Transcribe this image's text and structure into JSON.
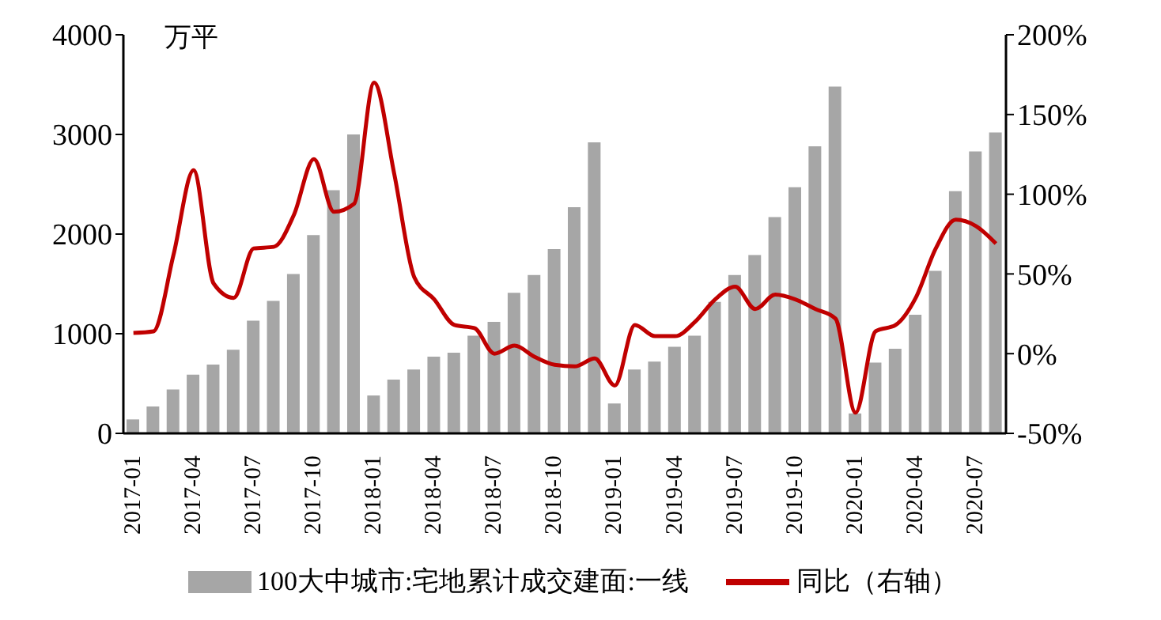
{
  "chart_data": {
    "type": "bar",
    "ylabel": "万平",
    "categories": [
      "2017-01",
      null,
      null,
      "2017-04",
      null,
      null,
      "2017-07",
      null,
      null,
      "2017-10",
      null,
      null,
      "2018-01",
      null,
      null,
      "2018-04",
      null,
      null,
      "2018-07",
      null,
      null,
      "2018-10",
      null,
      null,
      "2019-01",
      null,
      null,
      "2019-04",
      null,
      null,
      "2019-07",
      null,
      null,
      "2019-10",
      null,
      null,
      "2020-01",
      null,
      null,
      "2020-04",
      null,
      null,
      "2020-07",
      null
    ],
    "series": [
      {
        "name": "100大中城市:宅地累计成交建面:一线",
        "color": "#a6a6a6",
        "values": [
          140,
          270,
          440,
          590,
          690,
          840,
          1130,
          1330,
          1600,
          1990,
          2440,
          3000,
          380,
          540,
          640,
          770,
          810,
          980,
          1120,
          1410,
          1590,
          1850,
          2270,
          2920,
          300,
          640,
          720,
          870,
          980,
          1320,
          1590,
          1790,
          2170,
          2470,
          2880,
          3480,
          200,
          710,
          850,
          1190,
          1630,
          2430,
          2830,
          3020
        ]
      },
      {
        "name": "同比（右轴）",
        "type": "line",
        "axis": "y2",
        "color": "#c00000",
        "values": [
          13,
          14,
          62,
          115,
          44,
          35,
          66,
          67,
          87,
          122,
          89,
          94,
          170,
          113,
          48,
          34,
          18,
          16,
          0,
          5,
          -2,
          -7,
          -8,
          -3,
          -20,
          18,
          11,
          11,
          20,
          34,
          42,
          28,
          37,
          34,
          28,
          22,
          -37,
          14,
          18,
          35,
          66,
          84,
          80,
          69
        ]
      }
    ],
    "ylim": [
      0,
      4000
    ],
    "yticks": [
      0,
      1000,
      2000,
      3000,
      4000
    ],
    "y2lim": [
      -50,
      200
    ],
    "y2ticks": [
      {
        "value": -50,
        "label": "-50%"
      },
      {
        "value": 0,
        "label": "0%"
      },
      {
        "value": 50,
        "label": "50%"
      },
      {
        "value": 100,
        "label": "100%"
      },
      {
        "value": 150,
        "label": "150%"
      },
      {
        "value": 200,
        "label": "200%"
      }
    ],
    "grid": false,
    "legend": "bottom",
    "marker": "none",
    "line_style": "solid"
  }
}
